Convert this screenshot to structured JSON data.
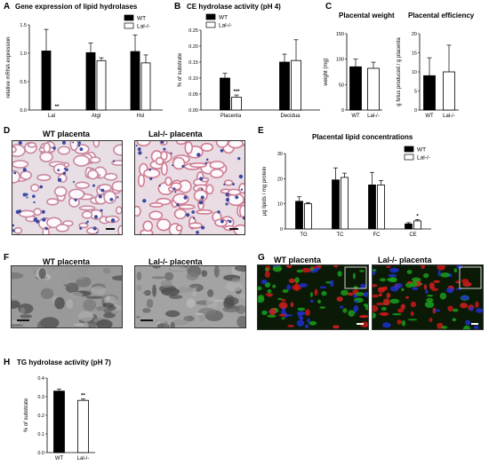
{
  "panels": {
    "A": {
      "letter": "A",
      "title": "Gene expression of lipid hydrolases"
    },
    "B": {
      "letter": "B",
      "title": "CE hydrolase activity (pH 4)"
    },
    "C": {
      "letter": "C",
      "title_weight": "Placental weight",
      "title_eff": "Placental efficiency"
    },
    "D": {
      "letter": "D",
      "left_title": "WT placenta",
      "right_title": "Lal-/- placenta"
    },
    "E": {
      "letter": "E",
      "title": "Placental lipid concentrations"
    },
    "F": {
      "letter": "F",
      "left_title": "WT placenta",
      "right_title": "Lal-/- placenta"
    },
    "G": {
      "letter": "G",
      "left_title": "WT placenta",
      "right_title": "Lal-/- placenta"
    },
    "H": {
      "letter": "H",
      "title": "TG hydrolase activity (pH 7)"
    }
  },
  "colors": {
    "wt": "#000000",
    "lal": "#ffffff",
    "stroke": "#000000"
  },
  "chart_data": [
    {
      "id": "A",
      "type": "bar",
      "title": "Gene expression of lipid hydrolases",
      "ylabel": "relative mRNA expression",
      "categories": [
        "Lal",
        "Atgl",
        "Hsl"
      ],
      "ylim": [
        0,
        1.5
      ],
      "yticks": [
        "0.0",
        "0.5",
        "1.0",
        "1.5"
      ],
      "legend": "top-right",
      "series": [
        {
          "name": "WT",
          "values": [
            1.04,
            1.01,
            1.03
          ],
          "errors": [
            0.38,
            0.17,
            0.29
          ]
        },
        {
          "name": "Lal-/-",
          "values": [
            0.0,
            0.87,
            0.83
          ],
          "errors": [
            0.0,
            0.05,
            0.14
          ]
        }
      ],
      "annotations": [
        "**",
        "",
        ""
      ]
    },
    {
      "id": "B",
      "type": "bar",
      "title": "CE hydrolase activity (pH 4)",
      "ylabel": "% of substrate",
      "categories": [
        "Placenta",
        "Decidua"
      ],
      "ylim": [
        0,
        0.25
      ],
      "yticks": [
        "0.00",
        "0.05",
        "0.10",
        "0.15",
        "0.20",
        "0.25"
      ],
      "legend": "top-left",
      "series": [
        {
          "name": "WT",
          "values": [
            0.1,
            0.15
          ],
          "errors": [
            0.015,
            0.025
          ]
        },
        {
          "name": "Lal-/-",
          "values": [
            0.04,
            0.155
          ],
          "errors": [
            0.007,
            0.065
          ]
        }
      ],
      "annotations": [
        "***",
        ""
      ]
    },
    {
      "id": "C1",
      "type": "bar",
      "title": "Placental weight",
      "ylabel": "weight (mg)",
      "categories": [
        "WT",
        "Lal-/-"
      ],
      "ylim": [
        0,
        150
      ],
      "yticks": [
        "0",
        "50",
        "100",
        "150"
      ],
      "values": [
        85,
        82
      ],
      "errors": [
        15,
        12
      ]
    },
    {
      "id": "C2",
      "type": "bar",
      "title": "Placental efficiency",
      "ylabel": "g fetus produced / g placenta",
      "categories": [
        "WT",
        "Lal-/-"
      ],
      "ylim": [
        0,
        20
      ],
      "yticks": [
        "0",
        "5",
        "10",
        "15",
        "20"
      ],
      "values": [
        9,
        10
      ],
      "errors": [
        4.7,
        7
      ]
    },
    {
      "id": "E",
      "type": "bar",
      "title": "Placental lipid concentrations",
      "ylabel": "µg lipids / mg protein",
      "categories": [
        "TG",
        "TC",
        "FC",
        "CE"
      ],
      "ylim": [
        0,
        30
      ],
      "yticks": [
        "0",
        "10",
        "20",
        "30"
      ],
      "legend": "top-right",
      "series": [
        {
          "name": "WT",
          "values": [
            11,
            19.5,
            17.5,
            2
          ],
          "errors": [
            1.8,
            4.8,
            5.0,
            0.5
          ]
        },
        {
          "name": "Lal-/-",
          "values": [
            10,
            20.5,
            17.5,
            3.2
          ],
          "errors": [
            0.5,
            1.7,
            1.8,
            0.5
          ]
        }
      ],
      "annotations": [
        "",
        "",
        "",
        "*"
      ]
    },
    {
      "id": "H",
      "type": "bar",
      "title": "TG hydrolase activity (pH 7)",
      "ylabel": "% of substrate",
      "categories": [
        "WT",
        "Lal-/-"
      ],
      "ylim": [
        0,
        0.4
      ],
      "yticks": [
        "0.0",
        "0.1",
        "0.2",
        "0.3",
        "0.4"
      ],
      "values": [
        0.33,
        0.28
      ],
      "errors": [
        0.01,
        0.008
      ],
      "annotations": [
        "",
        "**"
      ]
    }
  ]
}
